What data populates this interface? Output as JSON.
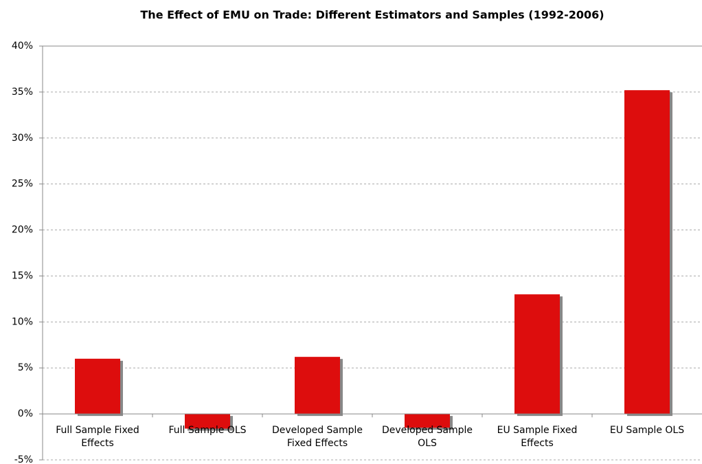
{
  "chart_data": {
    "type": "bar",
    "title": "The Effect of EMU on Trade: Different Estimators and Samples (1992-2006)",
    "categories": [
      "Full Sample Fixed Effects",
      "Full Sample OLS",
      "Developed Sample Fixed Effects",
      "Developed Sample OLS",
      "EU Sample Fixed Effects",
      "EU Sample OLS"
    ],
    "values": [
      6.0,
      -1.6,
      6.2,
      -1.5,
      13.0,
      35.2
    ],
    "color": "#dd0808",
    "ylim": [
      -5,
      40
    ],
    "yticks": [
      {
        "value": -5,
        "label": "-5%"
      },
      {
        "value": 0,
        "label": "0%"
      },
      {
        "value": 5,
        "label": "5%"
      },
      {
        "value": 10,
        "label": "10%"
      },
      {
        "value": 15,
        "label": "15%"
      },
      {
        "value": 20,
        "label": "20%"
      },
      {
        "value": 25,
        "label": "25%"
      },
      {
        "value": 30,
        "label": "30%"
      },
      {
        "value": 35,
        "label": "35%"
      },
      {
        "value": 40,
        "label": "40%"
      }
    ],
    "grid": true
  }
}
